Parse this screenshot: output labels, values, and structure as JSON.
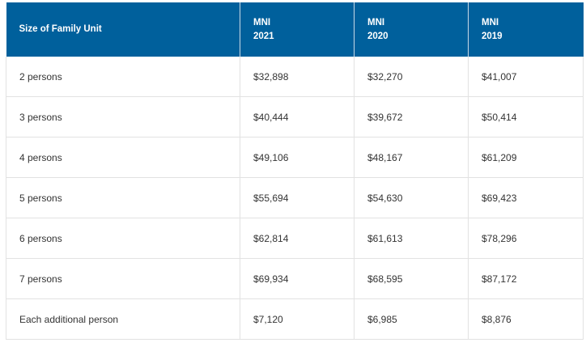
{
  "table": {
    "headers": [
      {
        "line1": "Size of Family Unit",
        "line2": ""
      },
      {
        "line1": "MNI",
        "line2": "2021"
      },
      {
        "line1": "MNI",
        "line2": "2020"
      },
      {
        "line1": "MNI",
        "line2": "2019"
      }
    ],
    "rows": [
      [
        "2 persons",
        "$32,898",
        "$32,270",
        "$41,007"
      ],
      [
        "3 persons",
        "$40,444",
        "$39,672",
        "$50,414"
      ],
      [
        "4 persons",
        "$49,106",
        "$48,167",
        "$61,209"
      ],
      [
        "5 persons",
        "$55,694",
        "$54,630",
        "$69,423"
      ],
      [
        "6 persons",
        "$62,814",
        "$61,613",
        "$78,296"
      ],
      [
        "7 persons",
        "$69,934",
        "$68,595",
        "$87,172"
      ],
      [
        "Each additional person",
        "$7,120",
        "$6,985",
        "$8,876"
      ]
    ],
    "colors": {
      "header_bg": "#00609c",
      "header_text": "#ffffff",
      "cell_text": "#333333",
      "border": "#e2e2e2"
    }
  }
}
